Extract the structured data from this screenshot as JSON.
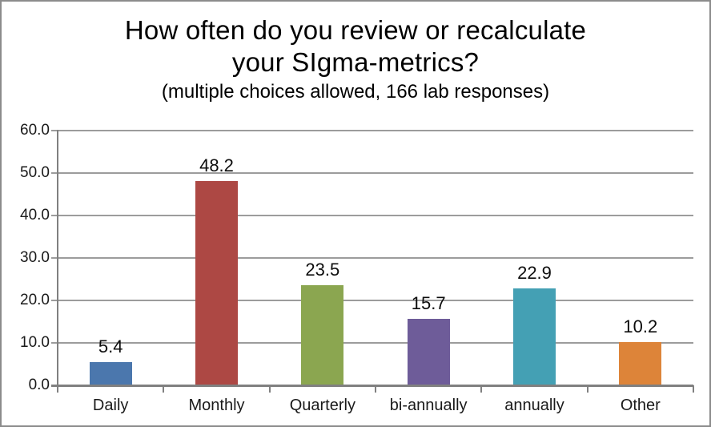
{
  "window": {
    "background_color": "#ffffff",
    "border_color": "#8c8c8c"
  },
  "chart_data": {
    "type": "bar",
    "title_line1": "How often do you review or recalculate",
    "title_line2": "your SIgma-metrics?",
    "subtitle": "(multiple choices allowed, 166 lab responses)",
    "categories": [
      "Daily",
      "Monthly",
      "Quarterly",
      "bi-annually",
      "annually",
      "Other"
    ],
    "values": [
      5.4,
      48.2,
      23.5,
      15.7,
      22.9,
      10.2
    ],
    "value_labels": [
      "5.4",
      "48.2",
      "23.5",
      "15.7",
      "22.9",
      "10.2"
    ],
    "bar_colors": [
      "#4b77ad",
      "#ad4844",
      "#8ba650",
      "#6e5c99",
      "#44a0b4",
      "#dd8439"
    ],
    "ylim": [
      0,
      60
    ],
    "ytick_step": 10,
    "ytick_labels": [
      "0.0",
      "10.0",
      "20.0",
      "30.0",
      "40.0",
      "50.0",
      "60.0"
    ],
    "grid": true,
    "gridline_color": "#9c9c9c",
    "axis_color": "#808080",
    "legend_position": "none",
    "xlabel": "",
    "ylabel": ""
  }
}
